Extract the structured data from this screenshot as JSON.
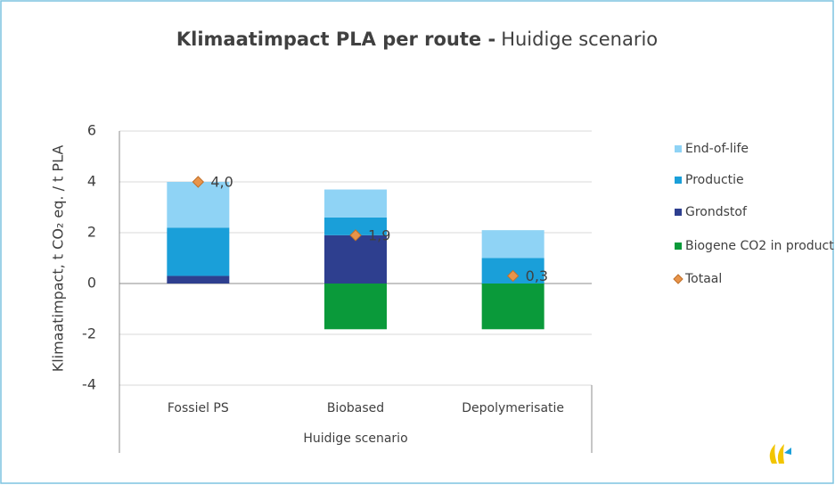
{
  "chart_data": {
    "type": "bar",
    "stacked": true,
    "title": "Klimaatimpact PLA per route -",
    "subtitle": "Huidige scenario",
    "y_label": "Klimaatimpact, t CO₂ eq. / t PLA",
    "categories": [
      "Fossiel PS",
      "Biobased",
      "Depolymerisatie"
    ],
    "group_label": "Huidige scenario",
    "series": [
      {
        "name": "End-of-life",
        "color": "#8fd3f5",
        "values": [
          1.8,
          1.1,
          1.1
        ]
      },
      {
        "name": "Productie",
        "color": "#1a9fd9",
        "values": [
          1.9,
          0.7,
          1.0
        ]
      },
      {
        "name": "Grondstof",
        "color": "#2e3f8f",
        "values": [
          0.3,
          1.9,
          0
        ]
      },
      {
        "name": "Biogene CO2 in product",
        "color": "#0a9a3a",
        "values": [
          0,
          -1.8,
          -1.8
        ]
      },
      {
        "name": "Totaal",
        "color": "#e8944a",
        "kind": "scatter",
        "values": [
          4.0,
          1.9,
          0.3
        ],
        "value_labels": [
          "4,0",
          "1,9",
          "0,3"
        ]
      }
    ],
    "ylim": [
      -4,
      6
    ],
    "yticks": [
      -4,
      -2,
      0,
      2,
      4,
      6
    ],
    "grid": true,
    "legend": "right"
  }
}
